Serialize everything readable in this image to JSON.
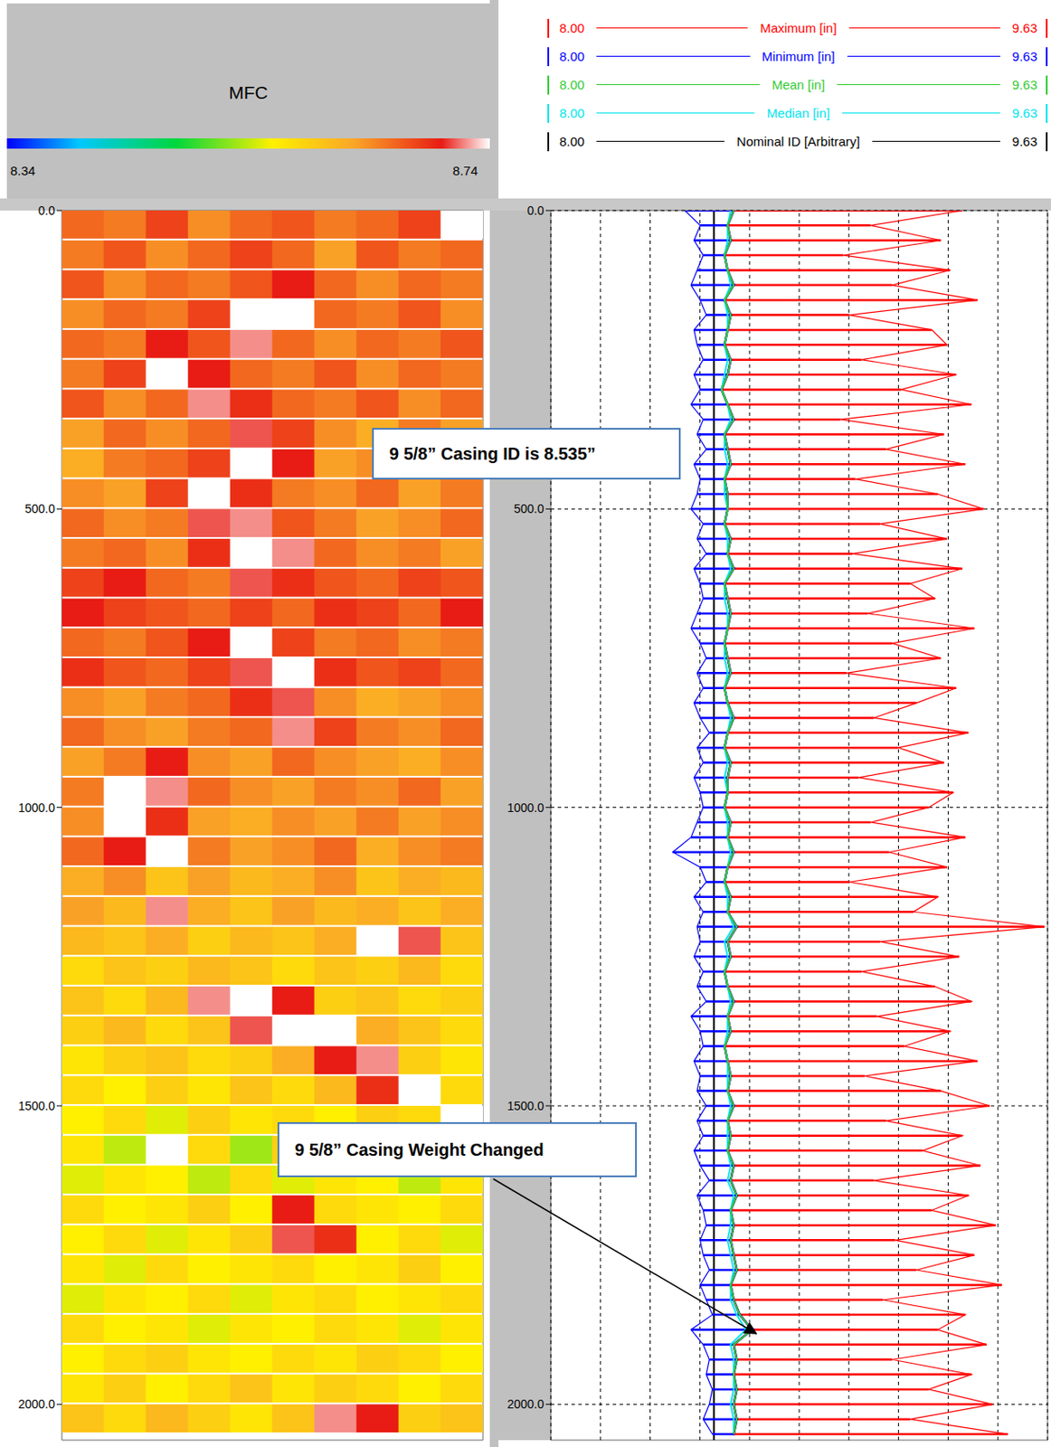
{
  "chart_data": [
    {
      "type": "heatmap",
      "title": "MFC",
      "depth": [
        0,
        50,
        100,
        150,
        200,
        250,
        300,
        350,
        400,
        450,
        500,
        550,
        600,
        650,
        700,
        750,
        800,
        850,
        900,
        950,
        1000,
        1050,
        1100,
        1150,
        1200,
        1250,
        1300,
        1350,
        1400,
        1450,
        1500,
        1550,
        1600,
        1650,
        1700,
        1750,
        1800,
        1850,
        1900,
        1950,
        2000
      ],
      "cells": [
        [
          8.66,
          8.65,
          8.68,
          8.64,
          8.66,
          8.67,
          8.65,
          8.66,
          8.68,
          8.78
        ],
        [
          8.65,
          8.67,
          8.64,
          8.66,
          8.68,
          8.66,
          8.63,
          8.67,
          8.65,
          8.66
        ],
        [
          8.67,
          8.64,
          8.66,
          8.65,
          8.67,
          8.7,
          8.66,
          8.64,
          8.66,
          8.65
        ],
        [
          8.64,
          8.66,
          8.65,
          8.68,
          8.77,
          8.78,
          8.66,
          8.65,
          8.67,
          8.64
        ],
        [
          8.66,
          8.65,
          8.7,
          8.67,
          8.72,
          8.66,
          8.64,
          8.66,
          8.65,
          8.67
        ],
        [
          8.65,
          8.68,
          8.77,
          8.7,
          8.66,
          8.65,
          8.67,
          8.64,
          8.66,
          8.65
        ],
        [
          8.67,
          8.64,
          8.66,
          8.72,
          8.69,
          8.66,
          8.65,
          8.67,
          8.64,
          8.66
        ],
        [
          8.63,
          8.66,
          8.64,
          8.66,
          8.71,
          8.68,
          8.64,
          8.62,
          8.65,
          8.63
        ],
        [
          8.62,
          8.65,
          8.66,
          8.68,
          8.77,
          8.7,
          8.63,
          8.64,
          8.62,
          8.64
        ],
        [
          8.64,
          8.63,
          8.68,
          8.78,
          8.69,
          8.65,
          8.64,
          8.66,
          8.63,
          8.65
        ],
        [
          8.66,
          8.64,
          8.65,
          8.71,
          8.72,
          8.67,
          8.65,
          8.63,
          8.64,
          8.66
        ],
        [
          8.65,
          8.66,
          8.64,
          8.69,
          8.77,
          8.72,
          8.66,
          8.64,
          8.65,
          8.63
        ],
        [
          8.68,
          8.7,
          8.66,
          8.65,
          8.71,
          8.69,
          8.67,
          8.66,
          8.68,
          8.67
        ],
        [
          8.7,
          8.68,
          8.67,
          8.66,
          8.68,
          8.66,
          8.69,
          8.68,
          8.66,
          8.7
        ],
        [
          8.66,
          8.65,
          8.67,
          8.7,
          8.77,
          8.68,
          8.65,
          8.66,
          8.64,
          8.65
        ],
        [
          8.69,
          8.67,
          8.66,
          8.68,
          8.71,
          8.78,
          8.69,
          8.67,
          8.68,
          8.66
        ],
        [
          8.64,
          8.63,
          8.65,
          8.66,
          8.69,
          8.71,
          8.64,
          8.62,
          8.63,
          8.64
        ],
        [
          8.66,
          8.64,
          8.63,
          8.65,
          8.66,
          8.72,
          8.68,
          8.65,
          8.64,
          8.66
        ],
        [
          8.63,
          8.65,
          8.7,
          8.64,
          8.63,
          8.66,
          8.64,
          8.63,
          8.62,
          8.64
        ],
        [
          8.65,
          8.77,
          8.72,
          8.66,
          8.64,
          8.63,
          8.65,
          8.64,
          8.66,
          8.63
        ],
        [
          8.64,
          8.78,
          8.69,
          8.63,
          8.62,
          8.64,
          8.63,
          8.65,
          8.63,
          8.64
        ],
        [
          8.66,
          8.7,
          8.77,
          8.65,
          8.63,
          8.64,
          8.66,
          8.62,
          8.64,
          8.65
        ],
        [
          8.62,
          8.64,
          8.6,
          8.63,
          8.61,
          8.62,
          8.64,
          8.6,
          8.62,
          8.61
        ],
        [
          8.63,
          8.61,
          8.72,
          8.62,
          8.6,
          8.63,
          8.61,
          8.62,
          8.6,
          8.62
        ],
        [
          8.61,
          8.6,
          8.62,
          8.59,
          8.61,
          8.6,
          8.62,
          8.77,
          8.71,
          8.6
        ],
        [
          8.58,
          8.6,
          8.59,
          8.61,
          8.6,
          8.58,
          8.6,
          8.59,
          8.61,
          8.58
        ],
        [
          8.6,
          8.58,
          8.61,
          8.72,
          8.77,
          8.7,
          8.59,
          8.6,
          8.58,
          8.59
        ],
        [
          8.59,
          8.61,
          8.58,
          8.6,
          8.71,
          8.78,
          8.76,
          8.62,
          8.6,
          8.58
        ],
        [
          8.57,
          8.59,
          8.6,
          8.58,
          8.59,
          8.62,
          8.7,
          8.72,
          8.59,
          8.57
        ],
        [
          8.58,
          8.56,
          8.59,
          8.57,
          8.6,
          8.58,
          8.61,
          8.69,
          8.77,
          8.58
        ],
        [
          8.56,
          8.58,
          8.55,
          8.59,
          8.57,
          8.58,
          8.56,
          8.59,
          8.58,
          8.76
        ],
        [
          8.57,
          8.54,
          8.77,
          8.58,
          8.53,
          8.59,
          8.57,
          8.55,
          8.58,
          8.56
        ],
        [
          8.55,
          8.57,
          8.56,
          8.54,
          8.58,
          8.55,
          8.57,
          8.56,
          8.54,
          8.57
        ],
        [
          8.58,
          8.56,
          8.57,
          8.59,
          8.56,
          8.7,
          8.58,
          8.57,
          8.56,
          8.58
        ],
        [
          8.56,
          8.58,
          8.55,
          8.57,
          8.59,
          8.71,
          8.69,
          8.56,
          8.58,
          8.55
        ],
        [
          8.57,
          8.55,
          8.58,
          8.56,
          8.57,
          8.58,
          8.56,
          8.57,
          8.59,
          8.56
        ],
        [
          8.55,
          8.57,
          8.56,
          8.58,
          8.55,
          8.57,
          8.58,
          8.56,
          8.57,
          8.58
        ],
        [
          8.58,
          8.56,
          8.57,
          8.55,
          8.57,
          8.56,
          8.58,
          8.57,
          8.55,
          8.57
        ],
        [
          8.56,
          8.58,
          8.59,
          8.57,
          8.56,
          8.58,
          8.57,
          8.59,
          8.58,
          8.56
        ],
        [
          8.57,
          8.59,
          8.56,
          8.58,
          8.6,
          8.57,
          8.59,
          8.58,
          8.56,
          8.58
        ],
        [
          8.6,
          8.58,
          8.61,
          8.59,
          8.57,
          8.6,
          8.72,
          8.7,
          8.59,
          8.6
        ]
      ],
      "xlim": [
        0,
        10
      ],
      "ylim": [
        0,
        2060
      ],
      "yticks": [
        {
          "value": 0,
          "label": "0.0"
        },
        {
          "value": 500,
          "label": "500.0"
        },
        {
          "value": 1000,
          "label": "1000.0"
        },
        {
          "value": 1500,
          "label": "1500.0"
        },
        {
          "value": 2000,
          "label": "2000.0"
        }
      ],
      "colorbar": {
        "range": [
          8.34,
          8.74
        ],
        "ticks": [
          8.34,
          8.74
        ]
      },
      "tick_labels": "y"
    },
    {
      "type": "line",
      "depth": [
        0,
        25,
        50,
        75,
        100,
        125,
        150,
        175,
        200,
        225,
        250,
        275,
        300,
        325,
        350,
        375,
        400,
        425,
        450,
        475,
        500,
        525,
        550,
        575,
        600,
        625,
        650,
        675,
        700,
        725,
        750,
        775,
        800,
        825,
        850,
        875,
        900,
        925,
        950,
        975,
        1000,
        1025,
        1050,
        1075,
        1100,
        1125,
        1150,
        1175,
        1200,
        1225,
        1250,
        1275,
        1300,
        1325,
        1350,
        1375,
        1400,
        1425,
        1450,
        1475,
        1500,
        1525,
        1550,
        1575,
        1600,
        1625,
        1650,
        1675,
        1700,
        1725,
        1750,
        1775,
        1800,
        1825,
        1850,
        1875,
        1900,
        1925,
        1950,
        1975,
        2000,
        2025,
        2050
      ],
      "series": [
        {
          "name": "Maximum [in]",
          "color": "#ff0000",
          "type": "area",
          "values": [
            9.35,
            9.05,
            9.28,
            8.96,
            9.31,
            9.12,
            9.4,
            8.98,
            9.25,
            9.3,
            9.02,
            9.33,
            9.15,
            9.38,
            8.95,
            9.29,
            9.1,
            9.36,
            9.0,
            9.27,
            9.42,
            9.08,
            9.3,
            8.99,
            9.35,
            9.18,
            9.26,
            9.04,
            9.39,
            9.12,
            9.28,
            8.97,
            9.33,
            9.2,
            9.06,
            9.37,
            9.14,
            9.29,
            9.01,
            9.32,
            9.24,
            9.05,
            9.36,
            9.11,
            9.3,
            8.98,
            9.27,
            9.19,
            9.62,
            9.08,
            9.34,
            9.02,
            9.26,
            9.38,
            9.07,
            9.31,
            9.16,
            9.4,
            9.03,
            9.28,
            9.44,
            9.1,
            9.35,
            9.22,
            9.41,
            9.06,
            9.37,
            9.25,
            9.46,
            9.13,
            9.39,
            9.2,
            9.48,
            9.09,
            9.36,
            9.27,
            9.43,
            9.12,
            9.38,
            9.24,
            9.45,
            9.18,
            9.5
          ]
        },
        {
          "name": "Minimum [in]",
          "color": "#0000ff",
          "type": "area",
          "values": [
            8.44,
            8.49,
            8.47,
            8.5,
            8.48,
            8.46,
            8.49,
            8.51,
            8.47,
            8.48,
            8.5,
            8.47,
            8.49,
            8.46,
            8.5,
            8.48,
            8.51,
            8.47,
            8.49,
            8.48,
            8.46,
            8.5,
            8.48,
            8.51,
            8.47,
            8.49,
            8.5,
            8.48,
            8.46,
            8.49,
            8.51,
            8.48,
            8.5,
            8.47,
            8.49,
            8.52,
            8.48,
            8.5,
            8.47,
            8.49,
            8.5,
            8.48,
            8.46,
            8.4,
            8.49,
            8.51,
            8.47,
            8.5,
            8.48,
            8.49,
            8.47,
            8.5,
            8.48,
            8.51,
            8.46,
            8.49,
            8.5,
            8.47,
            8.49,
            8.48,
            8.51,
            8.48,
            8.5,
            8.47,
            8.49,
            8.52,
            8.48,
            8.5,
            8.51,
            8.49,
            8.5,
            8.52,
            8.49,
            8.51,
            8.53,
            8.46,
            8.5,
            8.52,
            8.51,
            8.53,
            8.52,
            8.5,
            8.53
          ]
        },
        {
          "name": "Mean [in]",
          "color": "#33cc33",
          "type": "line",
          "values": [
            8.6,
            8.58,
            8.59,
            8.57,
            8.58,
            8.6,
            8.57,
            8.59,
            8.58,
            8.57,
            8.59,
            8.58,
            8.56,
            8.58,
            8.6,
            8.57,
            8.58,
            8.59,
            8.57,
            8.58,
            8.58,
            8.57,
            8.59,
            8.58,
            8.6,
            8.57,
            8.58,
            8.59,
            8.58,
            8.57,
            8.58,
            8.59,
            8.57,
            8.58,
            8.6,
            8.58,
            8.57,
            8.59,
            8.58,
            8.58,
            8.57,
            8.59,
            8.58,
            8.6,
            8.58,
            8.57,
            8.59,
            8.58,
            8.61,
            8.58,
            8.59,
            8.57,
            8.58,
            8.6,
            8.58,
            8.59,
            8.57,
            8.58,
            8.59,
            8.58,
            8.6,
            8.58,
            8.59,
            8.58,
            8.6,
            8.59,
            8.61,
            8.59,
            8.6,
            8.59,
            8.6,
            8.61,
            8.59,
            8.6,
            8.62,
            8.66,
            8.6,
            8.61,
            8.6,
            8.61,
            8.6,
            8.61,
            8.6
          ]
        },
        {
          "name": "Median [in]",
          "color": "#00e5ee",
          "type": "line",
          "values": [
            8.59,
            8.58,
            8.58,
            8.57,
            8.58,
            8.59,
            8.57,
            8.58,
            8.58,
            8.57,
            8.58,
            8.57,
            8.56,
            8.58,
            8.59,
            8.57,
            8.57,
            8.58,
            8.57,
            8.57,
            8.58,
            8.57,
            8.58,
            8.58,
            8.59,
            8.57,
            8.57,
            8.58,
            8.58,
            8.57,
            8.57,
            8.58,
            8.57,
            8.58,
            8.59,
            8.58,
            8.57,
            8.58,
            8.57,
            8.58,
            8.57,
            8.58,
            8.58,
            8.59,
            8.58,
            8.57,
            8.58,
            8.58,
            8.6,
            8.57,
            8.58,
            8.57,
            8.58,
            8.59,
            8.58,
            8.58,
            8.57,
            8.58,
            8.58,
            8.58,
            8.59,
            8.58,
            8.58,
            8.58,
            8.59,
            8.58,
            8.6,
            8.59,
            8.59,
            8.58,
            8.59,
            8.6,
            8.59,
            8.59,
            8.61,
            8.64,
            8.59,
            8.6,
            8.6,
            8.6,
            8.59,
            8.6,
            8.6
          ]
        },
        {
          "name": "Nominal ID [Arbitrary]",
          "color": "#000000",
          "type": "line",
          "value": 8.535
        }
      ],
      "xlim": [
        8.0,
        9.63
      ],
      "xticks": [
        8.0,
        8.163,
        8.326,
        8.489,
        8.652,
        8.815,
        8.978,
        9.141,
        9.304,
        9.467,
        9.63
      ],
      "ylim": [
        0,
        2060
      ],
      "yticks": [
        {
          "value": 0,
          "label": "0.0"
        },
        {
          "value": 500,
          "label": "500.0"
        },
        {
          "value": 1000,
          "label": "1000.0"
        },
        {
          "value": 1500,
          "label": "1500.0"
        },
        {
          "value": 2000,
          "label": "2000.0"
        }
      ],
      "grid": true,
      "tick_labels": "y",
      "legend": "top",
      "annotations": [
        "9 5/8” Casing ID is 8.535”",
        "9 5/8” Casing Weight Changed"
      ]
    }
  ]
}
